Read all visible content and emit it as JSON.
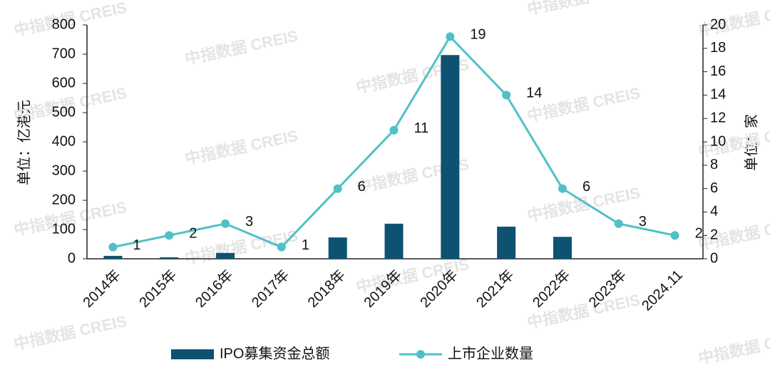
{
  "chart_data": {
    "type": "bar+line",
    "watermark": "中指数据 CREIS",
    "categories": [
      "2014年",
      "2015年",
      "2016年",
      "2017年",
      "2018年",
      "2019年",
      "2020年",
      "2021年",
      "2022年",
      "2023年",
      "2024.11"
    ],
    "series": [
      {
        "name": "IPO募集资金总额",
        "type": "bar",
        "color": "#0e5272",
        "values": [
          10,
          5,
          20,
          0,
          73,
          120,
          697,
          110,
          75,
          0,
          0
        ]
      },
      {
        "name": "上市企业数量",
        "type": "line",
        "axis": "y2",
        "color": "#4fc1c6",
        "values": [
          1,
          2,
          3,
          1,
          6,
          11,
          19,
          14,
          6,
          3,
          2
        ]
      }
    ],
    "ylabel": "单位：亿港元",
    "y2label": "单位：家",
    "ylim": [
      0,
      800
    ],
    "yticks": [
      0,
      100,
      200,
      300,
      400,
      500,
      600,
      700,
      800
    ],
    "y2lim": [
      0,
      20
    ],
    "y2ticks": [
      0,
      2,
      4,
      6,
      8,
      10,
      12,
      14,
      16,
      18,
      20
    ],
    "grid": false,
    "legend": "bottom"
  }
}
